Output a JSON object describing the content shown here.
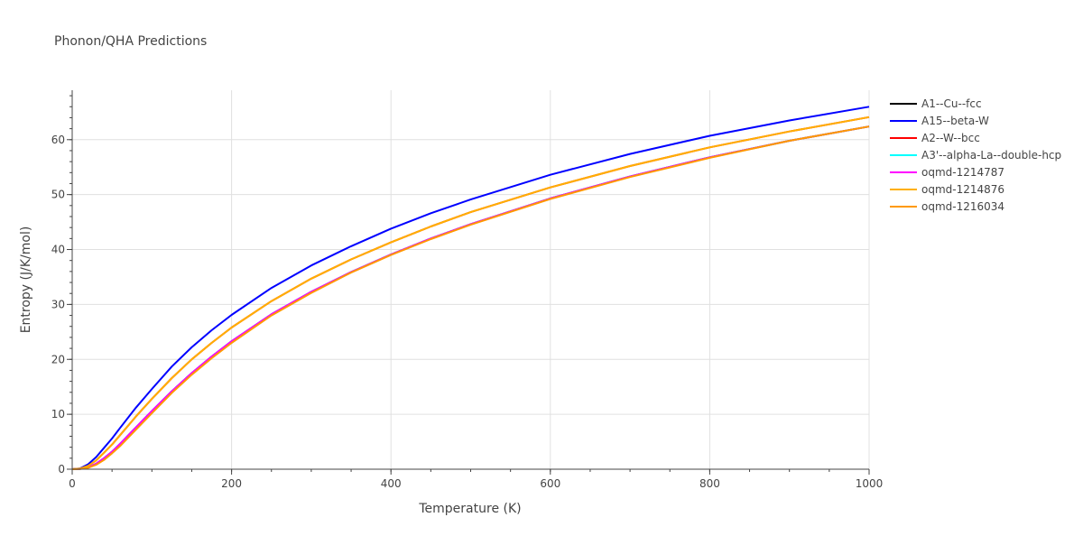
{
  "chart_data": {
    "type": "line",
    "title": "Phonon/QHA Predictions",
    "xlabel": "Temperature (K)",
    "ylabel": "Entropy (J/K/mol)",
    "xlim": [
      0,
      1000
    ],
    "ylim": [
      0,
      69
    ],
    "xticks": [
      0,
      200,
      400,
      600,
      800,
      1000
    ],
    "yticks": [
      0,
      10,
      20,
      30,
      40,
      50,
      60
    ],
    "grid": true,
    "legend_position": "right",
    "x": [
      0,
      10,
      20,
      30,
      40,
      50,
      60,
      80,
      100,
      125,
      150,
      175,
      200,
      250,
      300,
      350,
      400,
      450,
      500,
      600,
      700,
      800,
      900,
      1000
    ],
    "series": [
      {
        "name": "A1--Cu--fcc",
        "color": "#000000",
        "values": [
          0,
          0.05,
          0.35,
          1.0,
          2.0,
          3.2,
          4.6,
          7.6,
          10.6,
          14.2,
          17.5,
          20.5,
          23.3,
          28.2,
          32.3,
          35.9,
          39.1,
          42.0,
          44.6,
          49.3,
          53.3,
          56.8,
          59.8,
          62.4
        ]
      },
      {
        "name": "A15--beta-W",
        "color": "#0000ff",
        "values": [
          0,
          0.15,
          0.9,
          2.2,
          3.9,
          5.6,
          7.5,
          11.2,
          14.6,
          18.7,
          22.2,
          25.3,
          28.1,
          33.0,
          37.1,
          40.6,
          43.8,
          46.6,
          49.1,
          53.6,
          57.4,
          60.7,
          63.5,
          66.0
        ]
      },
      {
        "name": "A2--W--bcc",
        "color": "#ff0000",
        "values": [
          0,
          0.1,
          0.6,
          1.6,
          3.0,
          4.5,
          6.2,
          9.6,
          12.8,
          16.6,
          20.0,
          23.0,
          25.8,
          30.6,
          34.7,
          38.2,
          41.3,
          44.2,
          46.8,
          51.3,
          55.2,
          58.6,
          61.5,
          64.1
        ]
      },
      {
        "name": "A3'--alpha-La--double-hcp",
        "color": "#00ffff",
        "values": [
          0,
          0.05,
          0.35,
          1.0,
          2.0,
          3.2,
          4.6,
          7.6,
          10.6,
          14.2,
          17.5,
          20.5,
          23.3,
          28.2,
          32.3,
          35.9,
          39.1,
          42.0,
          44.6,
          49.3,
          53.3,
          56.8,
          59.8,
          62.4
        ]
      },
      {
        "name": "oqmd-1214787",
        "color": "#ff00ff",
        "values": [
          0,
          0.05,
          0.35,
          1.0,
          2.0,
          3.2,
          4.6,
          7.6,
          10.6,
          14.2,
          17.5,
          20.5,
          23.3,
          28.2,
          32.3,
          35.9,
          39.1,
          42.0,
          44.6,
          49.3,
          53.3,
          56.8,
          59.8,
          62.4
        ]
      },
      {
        "name": "oqmd-1214876",
        "color": "#ffb000",
        "values": [
          0,
          0.1,
          0.6,
          1.6,
          3.0,
          4.5,
          6.2,
          9.6,
          12.8,
          16.6,
          20.0,
          23.0,
          25.8,
          30.6,
          34.7,
          38.2,
          41.3,
          44.2,
          46.8,
          51.3,
          55.2,
          58.6,
          61.5,
          64.1
        ]
      },
      {
        "name": "oqmd-1216034",
        "color": "#ff9900",
        "values": [
          0,
          0.03,
          0.25,
          0.8,
          1.7,
          2.9,
          4.2,
          7.2,
          10.2,
          13.9,
          17.2,
          20.2,
          23.0,
          28.0,
          32.1,
          35.8,
          39.0,
          41.9,
          44.5,
          49.2,
          53.2,
          56.7,
          59.8,
          62.4
        ]
      }
    ]
  }
}
